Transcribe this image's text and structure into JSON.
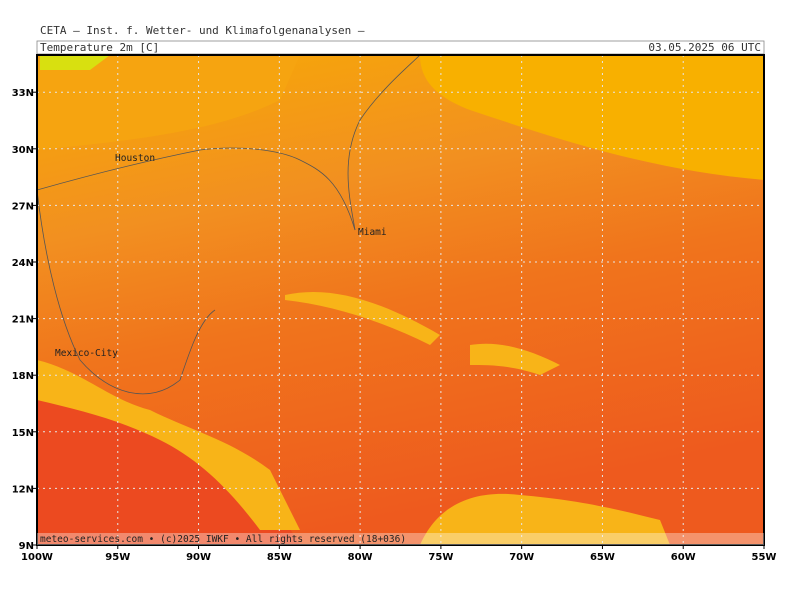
{
  "header": "CETA – Inst. f. Wetter- und Klimafolgenanalysen –",
  "panel": {
    "title": "Temperature 2m [C]",
    "valid": "03.05.2025 06 UTC"
  },
  "lat_labels": [
    "33N",
    "30N",
    "27N",
    "24N",
    "21N",
    "18N",
    "15N",
    "12N",
    "9N"
  ],
  "lon_labels": [
    "100W",
    "95W",
    "90W",
    "85W",
    "80W",
    "75W",
    "70W",
    "65W",
    "60W",
    "55W"
  ],
  "cities": [
    "Houston",
    "Miami",
    "Mexico-City"
  ],
  "footer": "meteo-services.com • (c)2025 IWKF • All rights reserved (18+036)"
}
